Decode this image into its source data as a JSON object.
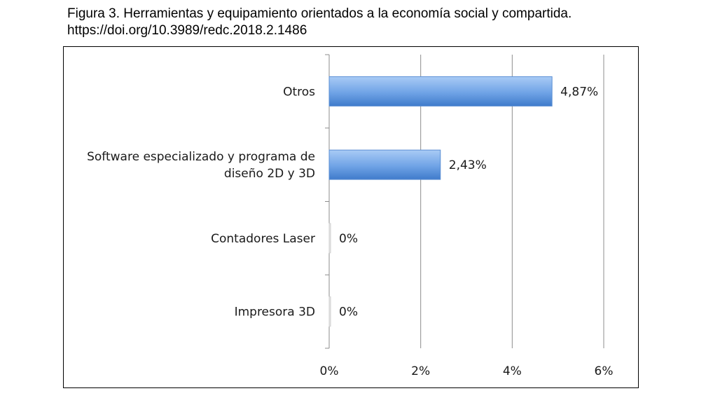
{
  "caption": {
    "line1": "Figura 3. Herramientas y equipamiento orientados a la economía social y compartida.",
    "line2": "https://doi.org/10.3989/redc.2018.2.1486"
  },
  "chart_data": {
    "type": "bar",
    "orientation": "horizontal",
    "categories": [
      [
        "Otros"
      ],
      [
        "Software especializado y programa de",
        "diseño 2D y 3D"
      ],
      [
        "Contadores Laser"
      ],
      [
        "Impresora 3D"
      ]
    ],
    "values": [
      4.87,
      2.43,
      0,
      0
    ],
    "value_labels": [
      "4,87%",
      "2,43%",
      "0%",
      "0%"
    ],
    "xlim": [
      0,
      6
    ],
    "xticks": [
      0,
      2,
      4,
      6
    ],
    "xtick_labels": [
      "0%",
      "2%",
      "4%",
      "6%"
    ],
    "grid": "vertical",
    "legend": "none",
    "bar_color": "#5b93d9"
  }
}
